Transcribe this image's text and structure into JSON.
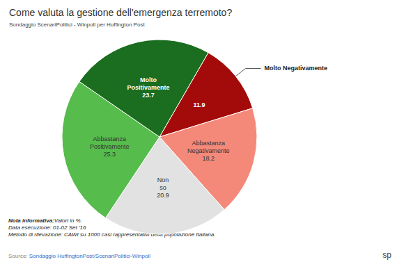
{
  "chart_data": {
    "type": "pie",
    "title": "Come valuta la gestione dell'emergenza terremoto?",
    "subtitle": "Sondaggio ScenariPolitici - Winpoll per Huffington Post",
    "categories": [
      "Molto Negativamente",
      "Abbastanza Negativamente",
      "Non so",
      "Abbastanza Positivamente",
      "Molto Positivamente"
    ],
    "values": [
      11.9,
      18.2,
      20.9,
      25.3,
      23.7
    ],
    "colors": [
      "#a30b0b",
      "#f4897a",
      "#e2e2e2",
      "#56bc4c",
      "#1b6d1f"
    ],
    "data_labels": true,
    "notes": [
      {
        "label": "Nota informativa:",
        "text": "Valori in %."
      },
      {
        "text": "Data esecuzione: 01-02 Set '16"
      },
      {
        "text": "Metodo di rilevazione: CAWI su 1000 casi rappresentativi della popolazione Italiana."
      }
    ],
    "source": {
      "label": "Source:",
      "text": "Sondaggio HuffingtonPost/ScenariPolitici-Winpoll"
    },
    "logo": "sp"
  }
}
